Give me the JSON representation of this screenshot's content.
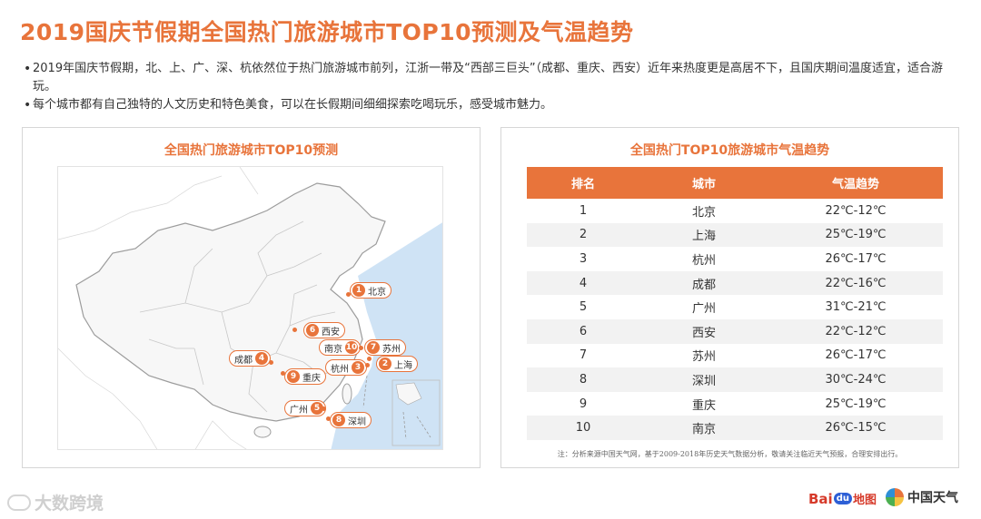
{
  "header": {
    "title": "2019国庆节假期全国热门旅游城市TOP10预测及气温趋势"
  },
  "bullets": [
    "2019年国庆节假期，北、上、广、深、杭依然位于热门旅游城市前列，江浙一带及“西部三巨头”（成都、重庆、西安）近年来热度更是高居不下，且国庆期间温度适宜，适合游玩。",
    "每个城市都有自己独特的人文历史和特色美食，可以在长假期间细细探索吃喝玩乐，感受城市魅力。"
  ],
  "map_panel": {
    "title": "全国热门旅游城市TOP10预测",
    "markers": [
      {
        "rank": "1",
        "city": "北京"
      },
      {
        "rank": "2",
        "city": "上海"
      },
      {
        "rank": "3",
        "city": "杭州"
      },
      {
        "rank": "4",
        "city": "成都"
      },
      {
        "rank": "5",
        "city": "广州"
      },
      {
        "rank": "6",
        "city": "西安"
      },
      {
        "rank": "7",
        "city": "苏州"
      },
      {
        "rank": "8",
        "city": "深圳"
      },
      {
        "rank": "9",
        "city": "重庆"
      },
      {
        "rank": "10",
        "city": "南京"
      }
    ]
  },
  "table_panel": {
    "title": "全国热门TOP10旅游城市气温趋势",
    "columns": [
      "排名",
      "城市",
      "气温趋势"
    ],
    "rows": [
      {
        "rank": "1",
        "city": "北京",
        "temp": "22℃-12℃"
      },
      {
        "rank": "2",
        "city": "上海",
        "temp": "25℃-19℃"
      },
      {
        "rank": "3",
        "city": "杭州",
        "temp": "26℃-17℃"
      },
      {
        "rank": "4",
        "city": "成都",
        "temp": "22℃-16℃"
      },
      {
        "rank": "5",
        "city": "广州",
        "temp": "31℃-21℃"
      },
      {
        "rank": "6",
        "city": "西安",
        "temp": "22℃-12℃"
      },
      {
        "rank": "7",
        "city": "苏州",
        "temp": "26℃-17℃"
      },
      {
        "rank": "8",
        "city": "深圳",
        "temp": "30℃-24℃"
      },
      {
        "rank": "9",
        "city": "重庆",
        "temp": "25℃-19℃"
      },
      {
        "rank": "10",
        "city": "南京",
        "temp": "26℃-15℃"
      }
    ],
    "note": "注：分析来源中国天气网，基于2009-2018年历史天气数据分析，敬请关注临近天气预报，合理安排出行。"
  },
  "footer": {
    "watermark": "大数跨境",
    "baidu_logo": {
      "part1": "Bai",
      "part2": "du",
      "part3": "地图"
    },
    "weather_logo": "中国天气"
  },
  "colors": {
    "accent": "#e8743b",
    "land": "#f5f5f5",
    "sea": "#cfe3f5",
    "border": "#cfcfcf"
  }
}
